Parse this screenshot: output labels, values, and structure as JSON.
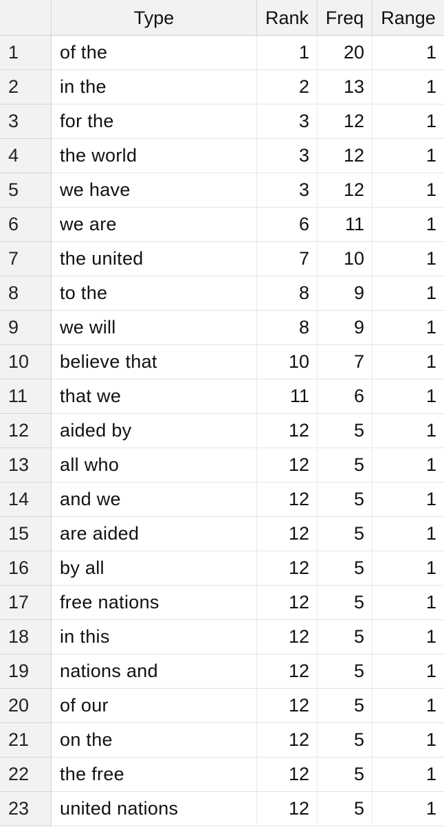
{
  "columns": {
    "index": "",
    "type": "Type",
    "rank": "Rank",
    "freq": "Freq",
    "range": "Range"
  },
  "rows": [
    {
      "idx": "1",
      "type": "of the",
      "rank": "1",
      "freq": "20",
      "range": "1"
    },
    {
      "idx": "2",
      "type": "in the",
      "rank": "2",
      "freq": "13",
      "range": "1"
    },
    {
      "idx": "3",
      "type": "for the",
      "rank": "3",
      "freq": "12",
      "range": "1"
    },
    {
      "idx": "4",
      "type": "the world",
      "rank": "3",
      "freq": "12",
      "range": "1"
    },
    {
      "idx": "5",
      "type": "we have",
      "rank": "3",
      "freq": "12",
      "range": "1"
    },
    {
      "idx": "6",
      "type": "we are",
      "rank": "6",
      "freq": "11",
      "range": "1"
    },
    {
      "idx": "7",
      "type": "the united",
      "rank": "7",
      "freq": "10",
      "range": "1"
    },
    {
      "idx": "8",
      "type": "to the",
      "rank": "8",
      "freq": "9",
      "range": "1"
    },
    {
      "idx": "9",
      "type": "we will",
      "rank": "8",
      "freq": "9",
      "range": "1"
    },
    {
      "idx": "10",
      "type": "believe that",
      "rank": "10",
      "freq": "7",
      "range": "1"
    },
    {
      "idx": "11",
      "type": "that we",
      "rank": "11",
      "freq": "6",
      "range": "1"
    },
    {
      "idx": "12",
      "type": "aided by",
      "rank": "12",
      "freq": "5",
      "range": "1"
    },
    {
      "idx": "13",
      "type": "all who",
      "rank": "12",
      "freq": "5",
      "range": "1"
    },
    {
      "idx": "14",
      "type": "and we",
      "rank": "12",
      "freq": "5",
      "range": "1"
    },
    {
      "idx": "15",
      "type": "are aided",
      "rank": "12",
      "freq": "5",
      "range": "1"
    },
    {
      "idx": "16",
      "type": "by all",
      "rank": "12",
      "freq": "5",
      "range": "1"
    },
    {
      "idx": "17",
      "type": "free nations",
      "rank": "12",
      "freq": "5",
      "range": "1"
    },
    {
      "idx": "18",
      "type": "in this",
      "rank": "12",
      "freq": "5",
      "range": "1"
    },
    {
      "idx": "19",
      "type": "nations and",
      "rank": "12",
      "freq": "5",
      "range": "1"
    },
    {
      "idx": "20",
      "type": "of our",
      "rank": "12",
      "freq": "5",
      "range": "1"
    },
    {
      "idx": "21",
      "type": "on the",
      "rank": "12",
      "freq": "5",
      "range": "1"
    },
    {
      "idx": "22",
      "type": "the free",
      "rank": "12",
      "freq": "5",
      "range": "1"
    },
    {
      "idx": "23",
      "type": "united nations",
      "rank": "12",
      "freq": "5",
      "range": "1"
    }
  ]
}
